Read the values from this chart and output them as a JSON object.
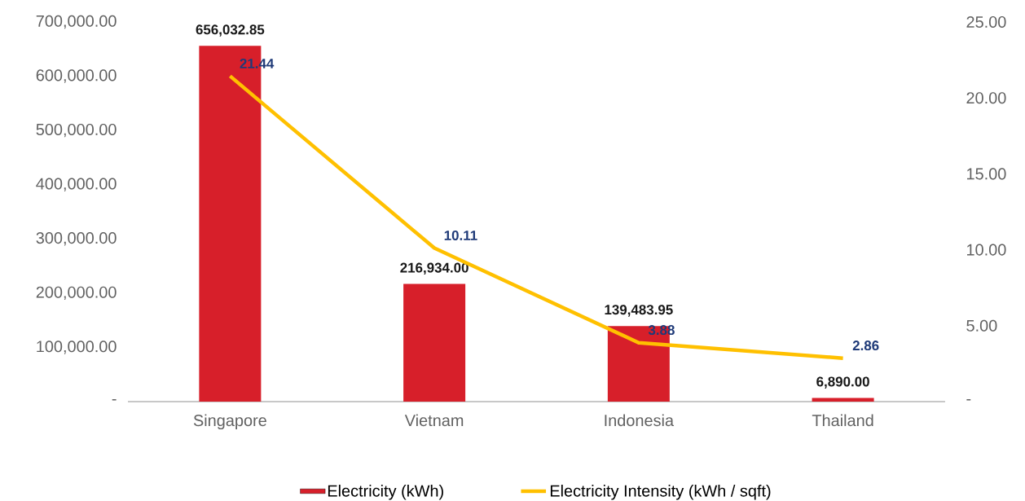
{
  "chart_data": {
    "type": "bar",
    "categories": [
      "Singapore",
      "Vietnam",
      "Indonesia",
      "Thailand"
    ],
    "series": [
      {
        "name": "Electricity (kWh)",
        "color": "#d71f2a",
        "values": [
          656032.85,
          216934.0,
          139483.95,
          6890.0
        ],
        "value_labels": [
          "656,032.85",
          "216,934.00",
          "139,483.95",
          "6,890.00"
        ]
      },
      {
        "name": "Electricity Intensity (kWh / sqft)",
        "type": "line",
        "axis": "y2",
        "color": "#ffc000",
        "values": [
          21.44,
          10.11,
          3.88,
          2.86
        ],
        "value_labels": [
          "21.44",
          "10.11",
          "3.88",
          "2.86"
        ]
      }
    ],
    "ylim": [
      0,
      700000
    ],
    "yticks": [
      {
        "value": 0,
        "label": "-"
      },
      {
        "value": 100000,
        "label": "100,000.00"
      },
      {
        "value": 200000,
        "label": "200,000.00"
      },
      {
        "value": 300000,
        "label": "300,000.00"
      },
      {
        "value": 400000,
        "label": "400,000.00"
      },
      {
        "value": 500000,
        "label": "500,000.00"
      },
      {
        "value": 600000,
        "label": "600,000.00"
      },
      {
        "value": 700000,
        "label": "700,000.00"
      }
    ],
    "y2lim": [
      0,
      25
    ],
    "y2ticks": [
      {
        "value": 0,
        "label": "-"
      },
      {
        "value": 5,
        "label": "5.00"
      },
      {
        "value": 10,
        "label": "10.00"
      },
      {
        "value": 15,
        "label": "15.00"
      },
      {
        "value": 20,
        "label": "20.00"
      },
      {
        "value": 25,
        "label": "25.00"
      }
    ],
    "legend": "bottom"
  }
}
